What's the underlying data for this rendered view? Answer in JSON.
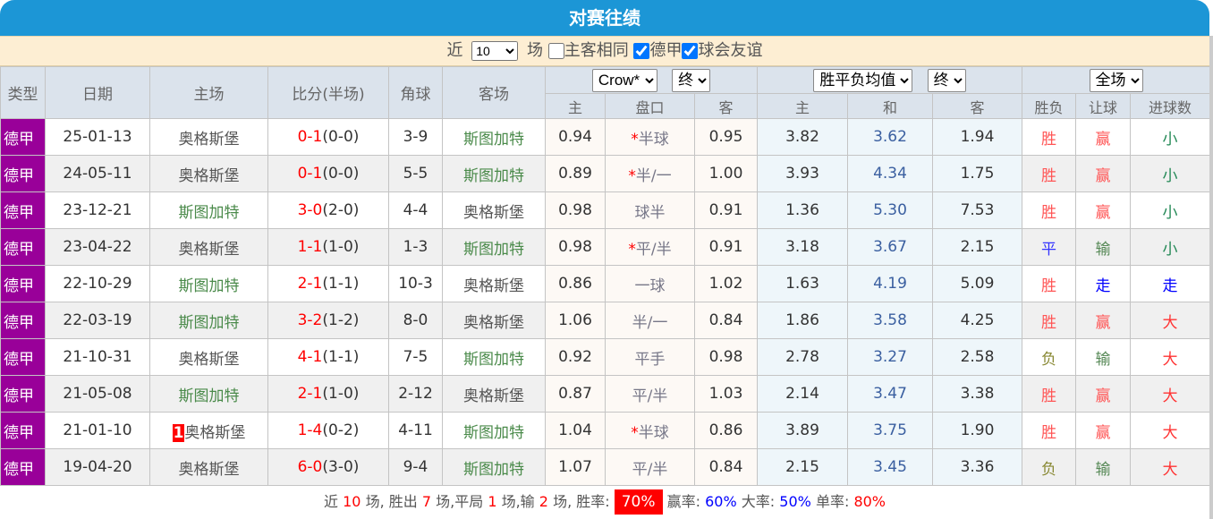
{
  "title": "对赛往绩",
  "filter": {
    "prefix": "近",
    "count": "10",
    "suffix": "场",
    "same_home_away": "主客相同",
    "same_checked": false,
    "league1": "德甲",
    "league1_checked": true,
    "league2": "球会友谊",
    "league2_checked": true
  },
  "header": {
    "type": "类型",
    "date": "日期",
    "home": "主场",
    "score": "比分(半场)",
    "corner": "角球",
    "away": "客场",
    "company": "Crow*",
    "company_state": "终",
    "odds_type": "胜平负均值",
    "odds_state": "终",
    "range": "全场",
    "sub": {
      "ah_home": "主",
      "ah_line": "盘口",
      "ah_away": "客",
      "eu_home": "主",
      "eu_draw": "和",
      "eu_away": "客",
      "res": "胜负",
      "handicap": "让球",
      "goals": "进球数"
    }
  },
  "colors": {
    "league_bg": "#990099",
    "title_bg": "#1c96d6",
    "win": "#ff3333",
    "lose": "#4a8a4a",
    "draw": "#0000ff"
  },
  "rows": [
    {
      "league": "德甲",
      "date": "25-01-13",
      "home": "奥格斯堡",
      "home_rank": "",
      "ft": "0-1",
      "ht": "(0-0)",
      "corner": "3-9",
      "away": "斯图加特",
      "o1": "0.94",
      "line": "半球",
      "star": "*",
      "o2": "0.95",
      "e1": "3.82",
      "e2": "3.62",
      "e3": "1.94",
      "r": "胜",
      "h": "赢",
      "g": "小"
    },
    {
      "league": "德甲",
      "date": "24-05-11",
      "home": "奥格斯堡",
      "home_rank": "",
      "ft": "0-1",
      "ht": "(0-0)",
      "corner": "5-5",
      "away": "斯图加特",
      "o1": "0.89",
      "line": "半/一",
      "star": "*",
      "o2": "1.00",
      "e1": "3.93",
      "e2": "4.34",
      "e3": "1.75",
      "r": "胜",
      "h": "赢",
      "g": "小"
    },
    {
      "league": "德甲",
      "date": "23-12-21",
      "home": "斯图加特",
      "home_rank": "",
      "ft": "3-0",
      "ht": "(2-0)",
      "corner": "4-4",
      "away": "奥格斯堡",
      "o1": "0.98",
      "line": "球半",
      "star": "",
      "o2": "0.91",
      "e1": "1.36",
      "e2": "5.30",
      "e3": "7.53",
      "r": "胜",
      "h": "赢",
      "g": "小"
    },
    {
      "league": "德甲",
      "date": "23-04-22",
      "home": "奥格斯堡",
      "home_rank": "",
      "ft": "1-1",
      "ht": "(1-0)",
      "corner": "1-3",
      "away": "斯图加特",
      "o1": "0.98",
      "line": "平/半",
      "star": "*",
      "o2": "0.91",
      "e1": "3.18",
      "e2": "3.67",
      "e3": "2.15",
      "r": "平",
      "h": "输",
      "g": "小"
    },
    {
      "league": "德甲",
      "date": "22-10-29",
      "home": "斯图加特",
      "home_rank": "",
      "ft": "2-1",
      "ht": "(1-1)",
      "corner": "10-3",
      "away": "奥格斯堡",
      "o1": "0.86",
      "line": "一球",
      "star": "",
      "o2": "1.02",
      "e1": "1.63",
      "e2": "4.19",
      "e3": "5.09",
      "r": "胜",
      "h": "走",
      "g": "走"
    },
    {
      "league": "德甲",
      "date": "22-03-19",
      "home": "斯图加特",
      "home_rank": "",
      "ft": "3-2",
      "ht": "(1-2)",
      "corner": "8-0",
      "away": "奥格斯堡",
      "o1": "1.06",
      "line": "半/一",
      "star": "",
      "o2": "0.84",
      "e1": "1.86",
      "e2": "3.58",
      "e3": "4.25",
      "r": "胜",
      "h": "赢",
      "g": "大"
    },
    {
      "league": "德甲",
      "date": "21-10-31",
      "home": "奥格斯堡",
      "home_rank": "",
      "ft": "4-1",
      "ht": "(1-1)",
      "corner": "7-5",
      "away": "斯图加特",
      "o1": "0.92",
      "line": "平手",
      "star": "",
      "o2": "0.98",
      "e1": "2.78",
      "e2": "3.27",
      "e3": "2.58",
      "r": "负",
      "h": "输",
      "g": "大"
    },
    {
      "league": "德甲",
      "date": "21-05-08",
      "home": "斯图加特",
      "home_rank": "",
      "ft": "2-1",
      "ht": "(1-0)",
      "corner": "2-12",
      "away": "奥格斯堡",
      "o1": "0.87",
      "line": "平/半",
      "star": "",
      "o2": "1.03",
      "e1": "2.14",
      "e2": "3.47",
      "e3": "3.38",
      "r": "胜",
      "h": "赢",
      "g": "大"
    },
    {
      "league": "德甲",
      "date": "21-01-10",
      "home": "奥格斯堡",
      "home_rank": "1",
      "ft": "1-4",
      "ht": "(0-2)",
      "corner": "4-11",
      "away": "斯图加特",
      "o1": "1.04",
      "line": "半球",
      "star": "*",
      "o2": "0.86",
      "e1": "3.89",
      "e2": "3.75",
      "e3": "1.90",
      "r": "胜",
      "h": "赢",
      "g": "大"
    },
    {
      "league": "德甲",
      "date": "19-04-20",
      "home": "奥格斯堡",
      "home_rank": "",
      "ft": "6-0",
      "ht": "(3-0)",
      "corner": "9-4",
      "away": "斯图加特",
      "o1": "1.07",
      "line": "平/半",
      "star": "",
      "o2": "0.84",
      "e1": "2.15",
      "e2": "3.45",
      "e3": "3.36",
      "r": "负",
      "h": "输",
      "g": "大"
    }
  ],
  "summary": {
    "t1": "近",
    "n_games": "10",
    "t2": "场, 胜出",
    "wins": "7",
    "t3": "场,平局",
    "draws": "1",
    "t4": "场,输",
    "losses": "2",
    "t5": "场, 胜率:",
    "win_rate": "70%",
    "t6": "赢率:",
    "handicap_rate": "60%",
    "t7": "大率:",
    "over_rate": "50%",
    "t8": "单率:",
    "odd_rate": "80%"
  }
}
